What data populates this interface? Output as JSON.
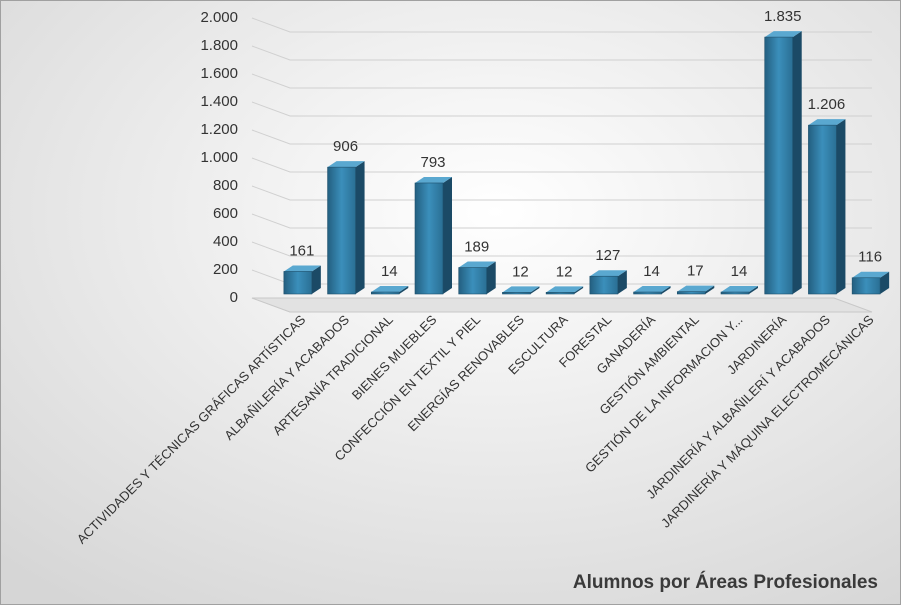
{
  "chart_data": {
    "type": "bar3d",
    "title": "Alumnos  por Áreas Profesionales",
    "categories": [
      "ACTIVIDADES Y TÉCNICAS GRÁFICAS ARTÍSTICAS",
      "ALBAÑILERÍA Y ACABADOS",
      "ARTESANÍA TRADICIONAL",
      "BIENES MUEBLES",
      "CONFECCIÓN EN TEXTIL Y PIEL",
      "ENERGÍAS RENOVABLES",
      "ESCULTURA",
      "FORESTAL",
      "GANADERÍA",
      "GESTIÓN AMBIENTAL",
      "GESTIÓN DE LA INFORMACION Y...",
      "JARDINERÍA",
      "JARDINERÍA Y ALBAÑILERÍ Y ACABADOS",
      "JARDINERÍA Y MÁQUINA ELECTROMECÁNICAS"
    ],
    "values": [
      161,
      906,
      14,
      793,
      189,
      12,
      12,
      127,
      14,
      17,
      14,
      1835,
      1206,
      116
    ],
    "value_labels": [
      "161",
      "906",
      "14",
      "793",
      "189",
      "12",
      "12",
      "127",
      "14",
      "17",
      "14",
      "1.835",
      "1.206",
      "116"
    ],
    "color": "#2f7fa8",
    "ylim": [
      0,
      2000
    ],
    "yticks": [
      0,
      200,
      400,
      600,
      800,
      {
        "value": 1000,
        "label": "1.000"
      },
      {
        "value": 1200,
        "label": "1.200"
      },
      {
        "value": 1400,
        "label": "1.400"
      },
      {
        "value": 1600,
        "label": "1.600"
      },
      {
        "value": 1800,
        "label": "1.800"
      },
      {
        "value": 2000,
        "label": "2.000"
      }
    ],
    "grid": true
  }
}
